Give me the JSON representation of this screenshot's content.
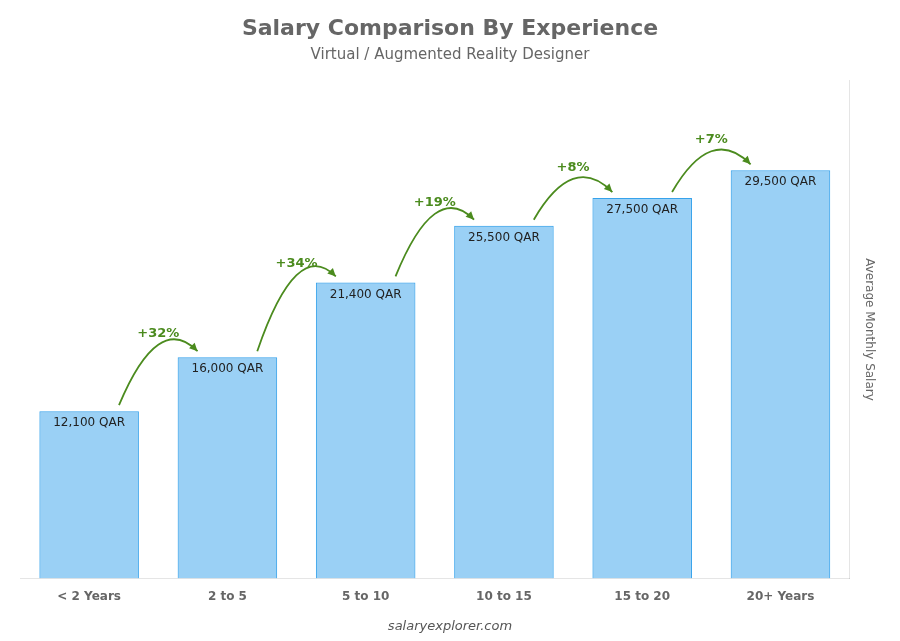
{
  "chart_data": {
    "type": "bar",
    "title": "Salary Comparison By Experience",
    "subtitle": "Virtual / Augmented Reality Designer",
    "categories": [
      "< 2 Years",
      "2 to 5",
      "5 to 10",
      "10 to 15",
      "15 to 20",
      "20+ Years"
    ],
    "values": [
      12100,
      16000,
      21400,
      25500,
      27500,
      29500
    ],
    "value_labels": [
      "12,100 QAR",
      "16,000 QAR",
      "21,400 QAR",
      "25,500 QAR",
      "27,500 QAR",
      "29,500 QAR"
    ],
    "data_labels": true,
    "annotations": [
      "+32%",
      "+34%",
      "+19%",
      "+8%",
      "+7%"
    ],
    "ylabel": "Average Monthly Salary",
    "footer": "salaryexplorer.com",
    "ylim": [
      0,
      36000
    ],
    "grid": false,
    "tick_labels": "x"
  }
}
